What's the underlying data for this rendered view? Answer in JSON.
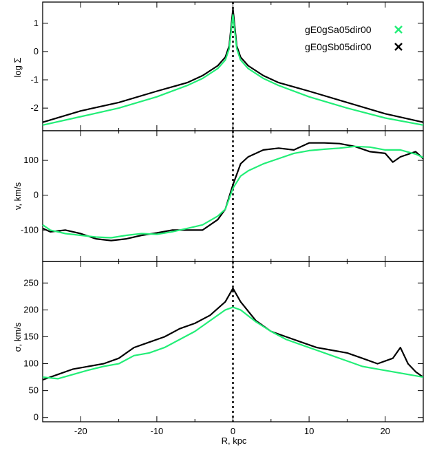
{
  "colors": {
    "black_series": "#000000",
    "green_series": "#22ee77",
    "axes": "#000000"
  },
  "legend": {
    "entries": [
      {
        "label": "gE0gSa05dir00",
        "marker": "x",
        "color": "#22ee77"
      },
      {
        "label": "gE0gSb05dir00",
        "marker": "x",
        "color": "#000000"
      }
    ],
    "placement": "top-right"
  },
  "chart_data": [
    {
      "type": "line",
      "panel": "surface-density",
      "title": "",
      "xlabel": "",
      "ylabel": "log Σ",
      "xlim": [
        -25,
        25
      ],
      "ylim": [
        -2.8,
        1.75
      ],
      "yticks": [
        1,
        0,
        -1,
        -2
      ],
      "ytick_labels": [
        "1",
        "0",
        "-1",
        "-2"
      ],
      "vline_x": 0,
      "series": [
        {
          "name": "gE0gSa05dir00",
          "color": "#22ee77",
          "x": [
            -25,
            -20,
            -15,
            -10,
            -6,
            -4,
            -2,
            -1,
            -0.5,
            0,
            0.5,
            1,
            2,
            4,
            6,
            10,
            15,
            20,
            25
          ],
          "y": [
            -2.6,
            -2.3,
            -2.0,
            -1.6,
            -1.2,
            -0.95,
            -0.6,
            -0.3,
            0.1,
            1.3,
            0.1,
            -0.3,
            -0.6,
            -0.95,
            -1.2,
            -1.6,
            -2.0,
            -2.35,
            -2.6
          ]
        },
        {
          "name": "gE0gSb05dir00",
          "color": "#000000",
          "x": [
            -25,
            -20,
            -15,
            -10,
            -6,
            -4,
            -2,
            -1,
            -0.5,
            0,
            0.5,
            1,
            2,
            4,
            6,
            10,
            15,
            20,
            25
          ],
          "y": [
            -2.5,
            -2.1,
            -1.8,
            -1.4,
            -1.1,
            -0.85,
            -0.5,
            -0.2,
            0.2,
            1.5,
            0.2,
            -0.2,
            -0.5,
            -0.85,
            -1.1,
            -1.4,
            -1.8,
            -2.2,
            -2.5
          ]
        }
      ]
    },
    {
      "type": "line",
      "panel": "velocity",
      "title": "",
      "xlabel": "",
      "ylabel": "v, km/s",
      "xlim": [
        -25,
        25
      ],
      "ylim": [
        -190,
        185
      ],
      "yticks": [
        100,
        0,
        -100
      ],
      "ytick_labels": [
        "100",
        "0",
        "-100"
      ],
      "vline_x": 0,
      "series": [
        {
          "name": "gE0gSa05dir00",
          "color": "#22ee77",
          "x": [
            -25,
            -24,
            -22,
            -20,
            -18,
            -16,
            -14,
            -12,
            -10,
            -8,
            -6,
            -4,
            -2,
            -1,
            0,
            1,
            2,
            4,
            6,
            8,
            10,
            12,
            14,
            16,
            18,
            20,
            22,
            24,
            25
          ],
          "y": [
            -85,
            -100,
            -110,
            -115,
            -120,
            -122,
            -115,
            -110,
            -112,
            -105,
            -95,
            -85,
            -60,
            -40,
            20,
            55,
            70,
            90,
            105,
            120,
            128,
            132,
            135,
            140,
            138,
            130,
            130,
            118,
            108
          ]
        },
        {
          "name": "gE0gSb05dir00",
          "color": "#000000",
          "x": [
            -25,
            -24,
            -22,
            -20,
            -18,
            -16,
            -14,
            -12,
            -10,
            -8,
            -6,
            -4,
            -2,
            -1,
            0,
            1,
            2,
            4,
            6,
            8,
            10,
            12,
            14,
            16,
            18,
            20,
            21,
            22,
            24,
            25
          ],
          "y": [
            -95,
            -105,
            -100,
            -110,
            -125,
            -130,
            -125,
            -115,
            -108,
            -100,
            -100,
            -100,
            -70,
            -40,
            30,
            90,
            110,
            130,
            135,
            130,
            150,
            150,
            148,
            140,
            125,
            120,
            95,
            110,
            125,
            105
          ]
        }
      ]
    },
    {
      "type": "line",
      "panel": "dispersion",
      "title": "",
      "xlabel": "R, kpc",
      "ylabel": "σ, km/s",
      "xlim": [
        -25,
        25
      ],
      "ylim": [
        -8,
        290
      ],
      "yticks": [
        0,
        50,
        100,
        150,
        200,
        250
      ],
      "ytick_labels": [
        "0",
        "50",
        "100",
        "150",
        "200",
        "250"
      ],
      "xticks": [
        -20,
        -10,
        0,
        10,
        20
      ],
      "xtick_labels": [
        "-20",
        "-10",
        "0",
        "10",
        "20"
      ],
      "vline_x": 0,
      "series": [
        {
          "name": "gE0gSa05dir00",
          "color": "#22ee77",
          "x": [
            -25,
            -23,
            -21,
            -19,
            -17,
            -15,
            -13,
            -11,
            -9,
            -7,
            -5,
            -3,
            -1,
            0,
            1,
            3,
            5,
            7,
            9,
            11,
            13,
            15,
            17,
            19,
            21,
            23,
            25
          ],
          "y": [
            75,
            72,
            80,
            88,
            95,
            100,
            115,
            120,
            130,
            145,
            160,
            180,
            200,
            205,
            200,
            178,
            160,
            145,
            135,
            125,
            115,
            105,
            95,
            90,
            85,
            80,
            75
          ]
        },
        {
          "name": "gE0gSb05dir00",
          "color": "#000000",
          "x": [
            -25,
            -23,
            -21,
            -19,
            -17,
            -15,
            -13,
            -11,
            -9,
            -7,
            -5,
            -3,
            -1,
            0,
            1,
            3,
            5,
            7,
            9,
            11,
            13,
            15,
            17,
            19,
            21,
            22,
            23,
            24,
            25
          ],
          "y": [
            70,
            80,
            90,
            95,
            100,
            110,
            130,
            140,
            150,
            165,
            175,
            190,
            215,
            240,
            215,
            180,
            160,
            150,
            140,
            130,
            125,
            120,
            110,
            100,
            110,
            130,
            100,
            85,
            75
          ]
        }
      ]
    }
  ]
}
